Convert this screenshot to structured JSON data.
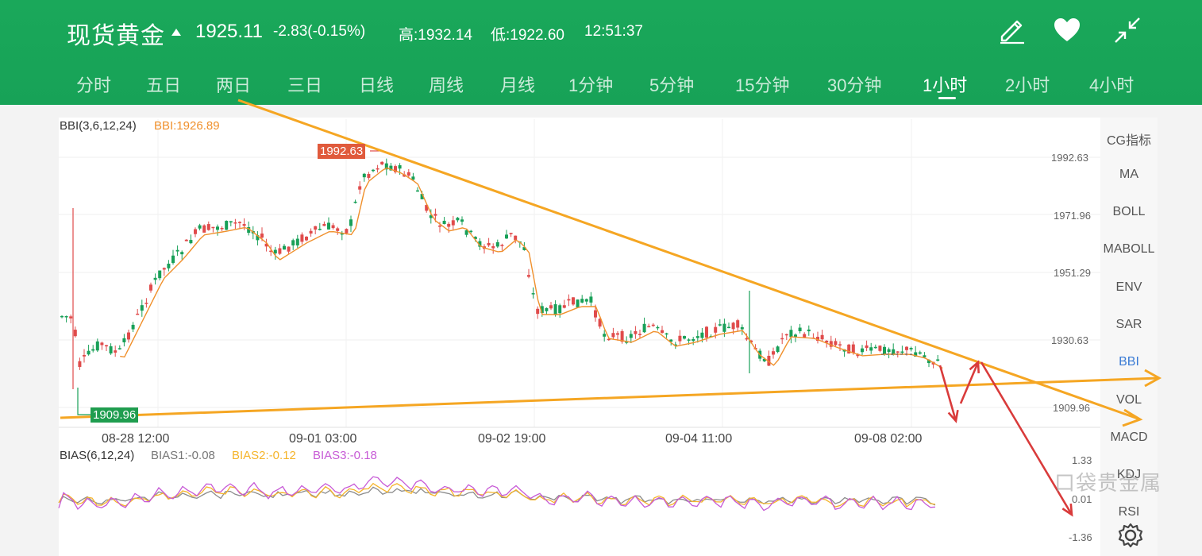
{
  "header": {
    "name": "现货黄金",
    "price": "1925.11",
    "change": "-2.83(-0.15%)",
    "high": "高:1932.14",
    "low": "低:1922.60",
    "time": "12:51:37"
  },
  "icons": {
    "edit": "edit-icon",
    "favorite": "heart-icon",
    "collapse": "collapse-icon",
    "settings": "gear-icon"
  },
  "tabs": [
    {
      "label": "分时"
    },
    {
      "label": "五日"
    },
    {
      "label": "两日"
    },
    {
      "label": "三日"
    },
    {
      "label": "日线"
    },
    {
      "label": "周线"
    },
    {
      "label": "月线"
    },
    {
      "label": "1分钟"
    },
    {
      "label": "5分钟"
    },
    {
      "label": "15分钟"
    },
    {
      "label": "30分钟"
    },
    {
      "label": "1小时"
    },
    {
      "label": "2小时"
    },
    {
      "label": "4小时"
    }
  ],
  "active_tab": "1小时",
  "main_indicator": {
    "name": "BBI(3,6,12,24)",
    "value": "BBI:1926.89"
  },
  "price_axis": [
    "1992.63",
    "1971.96",
    "1951.29",
    "1930.63",
    "1909.96"
  ],
  "high_tag": "1992.63",
  "low_tag": "1909.96",
  "dates": [
    "08-28 12:00",
    "09-01 03:00",
    "09-02 19:00",
    "09-04 11:00",
    "09-08 02:00"
  ],
  "sub_indicator": {
    "name": "BIAS(6,12,24)",
    "bias1": "BIAS1:-0.08",
    "bias2": "BIAS2:-0.12",
    "bias3": "BIAS3:-0.18",
    "axis": [
      "1.33",
      "0.01",
      "-1.36"
    ]
  },
  "side_menu": [
    {
      "label": "CG指标"
    },
    {
      "label": "MA"
    },
    {
      "label": "BOLL"
    },
    {
      "label": "MABOLL"
    },
    {
      "label": "ENV"
    },
    {
      "label": "SAR"
    },
    {
      "label": "BBI"
    },
    {
      "label": "VOL"
    },
    {
      "label": "MACD"
    },
    {
      "label": "KDJ"
    },
    {
      "label": "RSI"
    }
  ],
  "active_side": "BBI",
  "watermark": "口袋贵金属",
  "colors": {
    "header_green": "#17a257",
    "up_candle": "#e04b4b",
    "down_candle": "#18a058",
    "bbi_line": "#f0902c",
    "trend_line": "#f5a623",
    "arrow": "#d93b3b",
    "bias1": "#8c8c8c",
    "bias2": "#f5b42a",
    "bias3": "#c75ad6"
  }
}
